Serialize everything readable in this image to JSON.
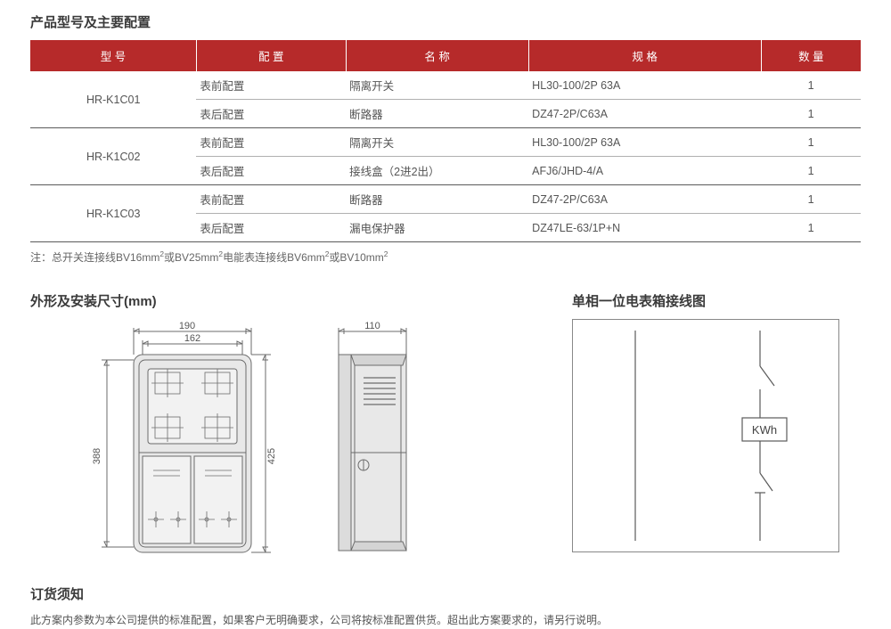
{
  "title1": "产品型号及主要配置",
  "table": {
    "header_bg": "#b62a2a",
    "columns": [
      "型 号",
      "配 置",
      "名 称",
      "规 格",
      "数 量"
    ],
    "rows": [
      {
        "model": "HR-K1C01",
        "cfg": "表前配置",
        "name": "隔离开关",
        "spec": "HL30-100/2P 63A",
        "qty": "1",
        "rowspan": 2
      },
      {
        "model": "",
        "cfg": "表后配置",
        "name": "断路器",
        "spec": "DZ47-2P/C63A",
        "qty": "1"
      },
      {
        "model": "HR-K1C02",
        "cfg": "表前配置",
        "name": "隔离开关",
        "spec": "HL30-100/2P 63A",
        "qty": "1",
        "rowspan": 2
      },
      {
        "model": "",
        "cfg": "表后配置",
        "name": "接线盒（2进2出）",
        "spec": "AFJ6/JHD-4/A",
        "qty": "1"
      },
      {
        "model": "HR-K1C03",
        "cfg": "表前配置",
        "name": "断路器",
        "spec": "DZ47-2P/C63A",
        "qty": "1",
        "rowspan": 2
      },
      {
        "model": "",
        "cfg": "表后配置",
        "name": "漏电保护器",
        "spec": "DZ47LE-63/1P+N",
        "qty": "1"
      }
    ]
  },
  "note_prefix": "注：总开关连接线BV16mm",
  "note_mid1": "或BV25mm",
  "note_mid2": "电能表连接线BV6mm",
  "note_mid3": "或BV10mm",
  "sup": "2",
  "title2": "外形及安装尺寸(mm)",
  "title3": "单相一位电表箱接线图",
  "dims": {
    "outer_w": "190",
    "inner_w": "162",
    "side_w": "110",
    "outer_h": "425",
    "inner_h": "388"
  },
  "wiring": {
    "label": "KWh"
  },
  "title4": "订货须知",
  "order_text": "此方案内参数为本公司提供的标准配置，如果客户无明确要求，公司将按标准配置供货。超出此方案要求的，请另行说明。",
  "colors": {
    "stroke": "#6b6b6b",
    "fill": "#e8e8e8",
    "dim": "#6b6b6b"
  }
}
